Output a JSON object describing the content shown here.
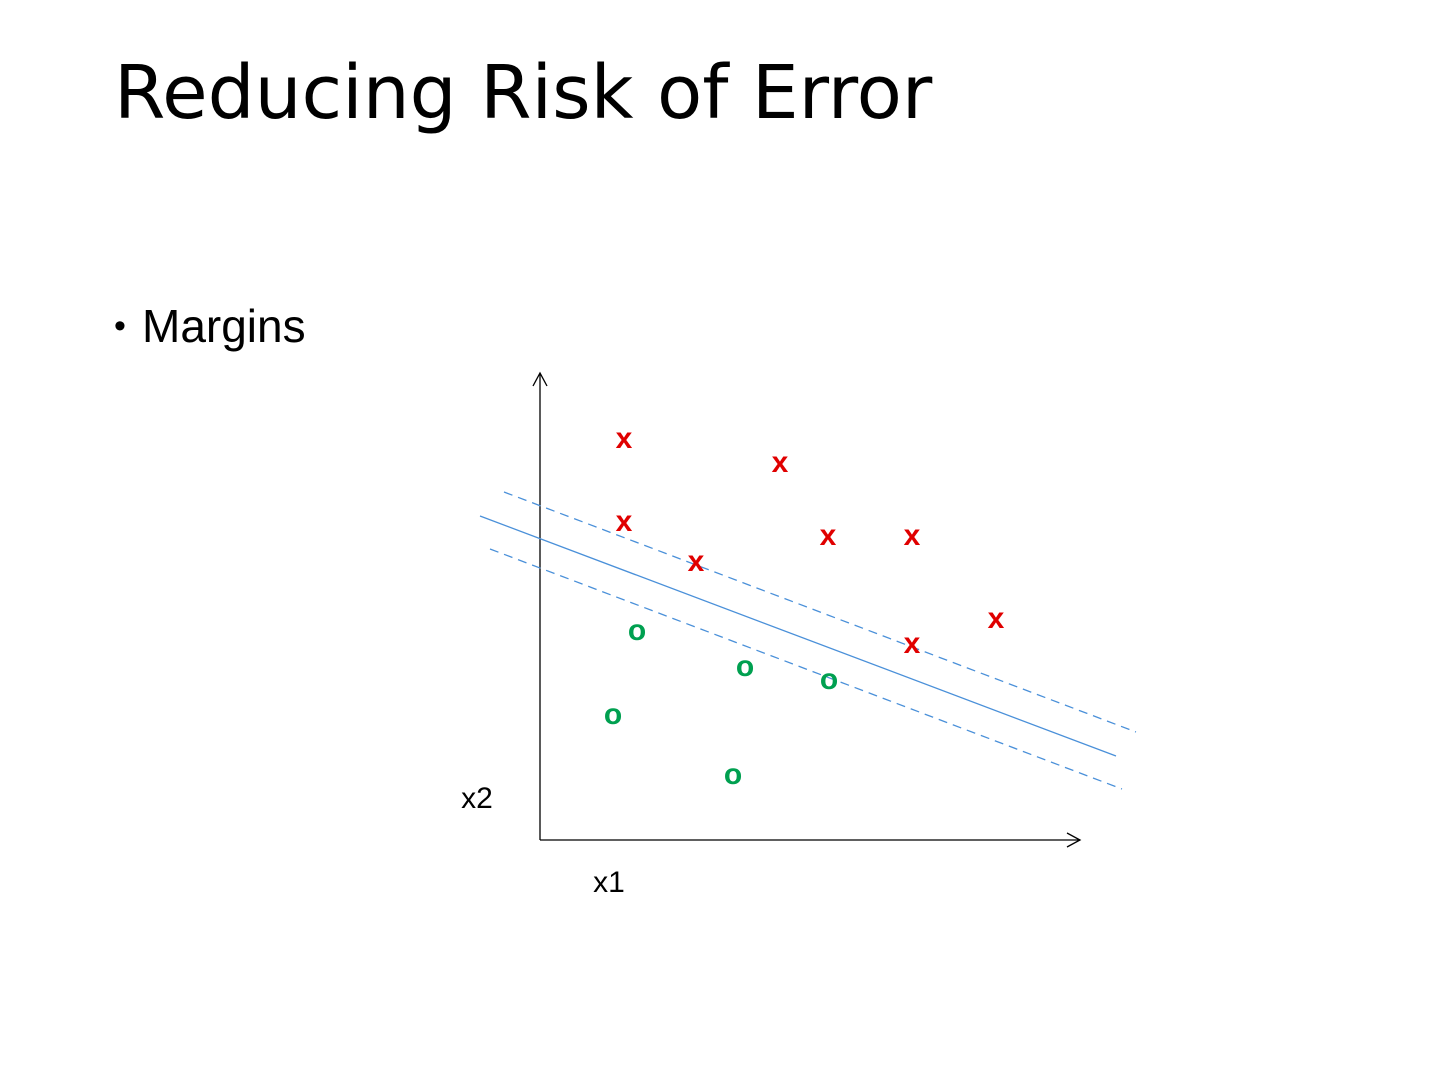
{
  "title": "Reducing Risk of Error",
  "bullets": [
    "Margins"
  ],
  "diagram": {
    "x_axis_label": "x1",
    "y_axis_label": "x2",
    "points": [
      {
        "label": "x",
        "color": "#e00000"
      },
      {
        "label": "x",
        "color": "#e00000"
      },
      {
        "label": "x",
        "color": "#e00000"
      },
      {
        "label": "x",
        "color": "#e00000"
      },
      {
        "label": "x",
        "color": "#e00000"
      },
      {
        "label": "x",
        "color": "#e00000"
      },
      {
        "label": "x",
        "color": "#e00000"
      },
      {
        "label": "x",
        "color": "#e00000"
      },
      {
        "label": "o",
        "color": "#00a050"
      },
      {
        "label": "o",
        "color": "#00a050"
      },
      {
        "label": "o",
        "color": "#00a050"
      },
      {
        "label": "o",
        "color": "#00a050"
      },
      {
        "label": "o",
        "color": "#00a050"
      }
    ]
  }
}
